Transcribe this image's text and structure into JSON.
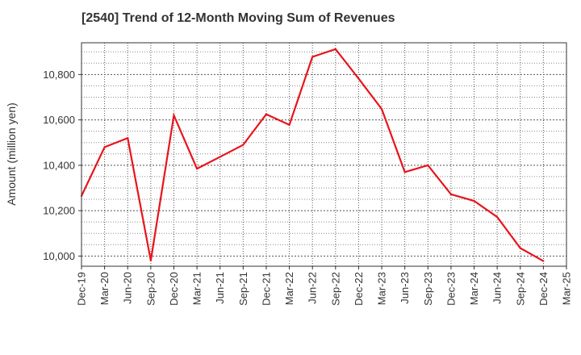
{
  "chart_data": {
    "type": "line",
    "title": "[2540]  Trend of 12-Month Moving Sum of Revenues",
    "xlabel": "",
    "ylabel": "Amount (million yen)",
    "categories": [
      "Dec-19",
      "Mar-20",
      "Jun-20",
      "Sep-20",
      "Dec-20",
      "Mar-21",
      "Jun-21",
      "Sep-21",
      "Dec-21",
      "Mar-22",
      "Jun-22",
      "Sep-22",
      "Dec-22",
      "Mar-23",
      "Jun-23",
      "Sep-23",
      "Dec-23",
      "Mar-24",
      "Jun-24",
      "Sep-24",
      "Dec-24",
      "Mar-25"
    ],
    "ylim": [
      9955,
      10940
    ],
    "yticks": [
      10000,
      10200,
      10400,
      10600,
      10800
    ],
    "ytick_labels": [
      "10,000",
      "10,200",
      "10,400",
      "10,600",
      "10,800"
    ],
    "grid": true,
    "series": [
      {
        "name": "",
        "color": "#e8141b",
        "values": [
          10265,
          10480,
          10520,
          9980,
          10620,
          10385,
          10437,
          10490,
          10625,
          10578,
          10878,
          10912,
          10782,
          10648,
          10370,
          10400,
          10272,
          10243,
          10172,
          10035,
          9978,
          null
        ]
      }
    ]
  }
}
